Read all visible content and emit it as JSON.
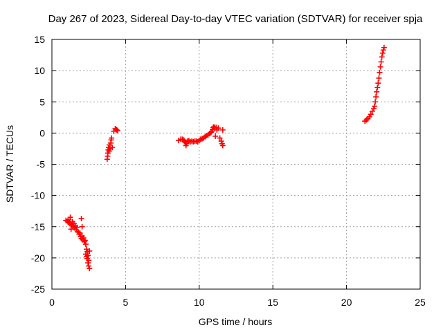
{
  "chart_data": {
    "type": "scatter",
    "title": "Day 267 of 2023, Sidereal Day-to-day VTEC variation (SDTVAR) for receiver spja",
    "xlabel": "GPS time / hours",
    "ylabel": "SDTVAR / TECUs",
    "xlim": [
      0,
      25
    ],
    "ylim": [
      -25,
      15
    ],
    "xticks": [
      0,
      5,
      10,
      15,
      20,
      25
    ],
    "yticks": [
      -25,
      -20,
      -15,
      -10,
      -5,
      0,
      5,
      10,
      15
    ],
    "grid": true,
    "marker": "+",
    "series": [
      {
        "name": "spja",
        "color": "#ff0000",
        "points": [
          [
            0.95,
            -14.0
          ],
          [
            1.05,
            -14.1
          ],
          [
            1.1,
            -14.3
          ],
          [
            1.15,
            -13.9
          ],
          [
            1.2,
            -14.4
          ],
          [
            1.25,
            -13.5
          ],
          [
            1.3,
            -14.6
          ],
          [
            1.3,
            -15.4
          ],
          [
            1.35,
            -14.8
          ],
          [
            1.4,
            -14.2
          ],
          [
            1.45,
            -15.0
          ],
          [
            1.5,
            -14.5
          ],
          [
            1.55,
            -15.2
          ],
          [
            1.6,
            -14.9
          ],
          [
            1.65,
            -15.5
          ],
          [
            1.7,
            -15.1
          ],
          [
            1.75,
            -15.8
          ],
          [
            1.8,
            -15.9
          ],
          [
            1.85,
            -16.2
          ],
          [
            1.9,
            -16.0
          ],
          [
            1.95,
            -16.6
          ],
          [
            2.0,
            -16.9
          ],
          [
            2.0,
            -13.7
          ],
          [
            2.05,
            -16.5
          ],
          [
            2.05,
            -15.0
          ],
          [
            2.1,
            -17.1
          ],
          [
            2.15,
            -16.8
          ],
          [
            2.2,
            -17.4
          ],
          [
            2.25,
            -17.2
          ],
          [
            2.3,
            -17.8
          ],
          [
            2.3,
            -19.4
          ],
          [
            2.35,
            -18.6
          ],
          [
            2.35,
            -19.8
          ],
          [
            2.4,
            -20.1
          ],
          [
            2.4,
            -19.0
          ],
          [
            2.45,
            -20.8
          ],
          [
            2.45,
            -19.6
          ],
          [
            2.5,
            -21.3
          ],
          [
            2.5,
            -20.4
          ],
          [
            2.55,
            -21.7
          ],
          [
            2.55,
            -18.9
          ],
          [
            3.75,
            -4.2
          ],
          [
            3.78,
            -3.7
          ],
          [
            3.8,
            -3.2
          ],
          [
            3.82,
            -2.7
          ],
          [
            3.85,
            -2.3
          ],
          [
            3.88,
            -2.9
          ],
          [
            3.9,
            -1.9
          ],
          [
            3.95,
            -2.5
          ],
          [
            4.0,
            -1.6
          ],
          [
            4.02,
            -1.1
          ],
          [
            4.05,
            -0.8
          ],
          [
            4.1,
            -2.3
          ],
          [
            4.2,
            0.3
          ],
          [
            4.3,
            0.7
          ],
          [
            4.35,
            0.6
          ],
          [
            4.4,
            0.5
          ],
          [
            4.45,
            0.4
          ],
          [
            8.6,
            -1.2
          ],
          [
            8.75,
            -1.0
          ],
          [
            8.85,
            -1.0
          ],
          [
            8.95,
            -1.1
          ],
          [
            9.0,
            -1.3
          ],
          [
            9.05,
            -1.5
          ],
          [
            9.1,
            -2.0
          ],
          [
            9.15,
            -1.7
          ],
          [
            9.2,
            -1.3
          ],
          [
            9.3,
            -1.2
          ],
          [
            9.4,
            -1.4
          ],
          [
            9.5,
            -1.3
          ],
          [
            9.6,
            -1.4
          ],
          [
            9.7,
            -1.3
          ],
          [
            9.8,
            -1.3
          ],
          [
            9.9,
            -1.4
          ],
          [
            10.0,
            -1.2
          ],
          [
            10.1,
            -1.0
          ],
          [
            10.2,
            -0.9
          ],
          [
            10.3,
            -0.8
          ],
          [
            10.4,
            -0.6
          ],
          [
            10.5,
            -0.4
          ],
          [
            10.6,
            -0.3
          ],
          [
            10.7,
            -0.1
          ],
          [
            10.8,
            0.1
          ],
          [
            10.85,
            0.3
          ],
          [
            10.9,
            0.6
          ],
          [
            10.95,
            0.9
          ],
          [
            11.0,
            1.0
          ],
          [
            11.05,
            0.8
          ],
          [
            11.1,
            -0.5
          ],
          [
            11.15,
            0.9
          ],
          [
            11.2,
            0.5
          ],
          [
            11.3,
            0.8
          ],
          [
            11.4,
            -0.8
          ],
          [
            11.5,
            -1.3
          ],
          [
            11.55,
            -1.7
          ],
          [
            11.6,
            -2.0
          ],
          [
            11.6,
            0.5
          ],
          [
            21.25,
            1.9
          ],
          [
            21.35,
            2.1
          ],
          [
            21.45,
            2.3
          ],
          [
            21.55,
            2.6
          ],
          [
            21.65,
            3.0
          ],
          [
            21.75,
            3.5
          ],
          [
            21.85,
            3.9
          ],
          [
            21.9,
            4.3
          ],
          [
            21.95,
            5.0
          ],
          [
            22.0,
            5.8
          ],
          [
            22.05,
            6.6
          ],
          [
            22.1,
            7.3
          ],
          [
            22.15,
            8.0
          ],
          [
            22.2,
            8.8
          ],
          [
            22.25,
            9.7
          ],
          [
            22.3,
            10.6
          ],
          [
            22.35,
            11.4
          ],
          [
            22.4,
            12.2
          ],
          [
            22.45,
            12.8
          ],
          [
            22.5,
            13.3
          ],
          [
            22.55,
            13.7
          ]
        ]
      }
    ]
  }
}
